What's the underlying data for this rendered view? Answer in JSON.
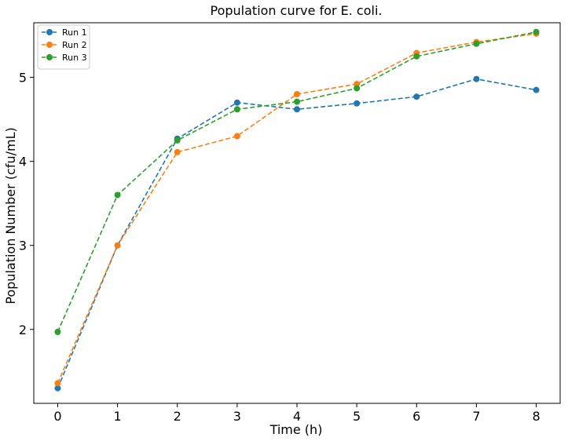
{
  "chart_data": {
    "type": "line",
    "title": "Population curve for E. coli.",
    "xlabel": "Time (h)",
    "ylabel": "Population Number (cfu/mL)",
    "x": [
      0,
      1,
      2,
      3,
      4,
      5,
      6,
      7,
      8
    ],
    "xlim": [
      -0.4,
      8.4
    ],
    "ylim": [
      1.12,
      5.65
    ],
    "xticks": [
      "0",
      "1",
      "2",
      "3",
      "4",
      "5",
      "6",
      "7",
      "8"
    ],
    "yticks": [
      "2",
      "3",
      "4",
      "5"
    ],
    "grid": false,
    "legend_position": "top-left",
    "line_style": "dashed",
    "marker": "circle",
    "series": [
      {
        "name": "Run 1",
        "color": "#1f77b4",
        "values": [
          1.3,
          3.0,
          4.27,
          4.7,
          4.62,
          4.69,
          4.77,
          4.98,
          4.85
        ]
      },
      {
        "name": "Run 2",
        "color": "#ff7f0e",
        "values": [
          1.36,
          3.0,
          4.11,
          4.3,
          4.8,
          4.92,
          5.29,
          5.42,
          5.52
        ]
      },
      {
        "name": "Run 3",
        "color": "#2ca02c",
        "values": [
          1.97,
          3.6,
          4.25,
          4.62,
          4.71,
          4.87,
          5.25,
          5.4,
          5.54
        ]
      }
    ]
  }
}
